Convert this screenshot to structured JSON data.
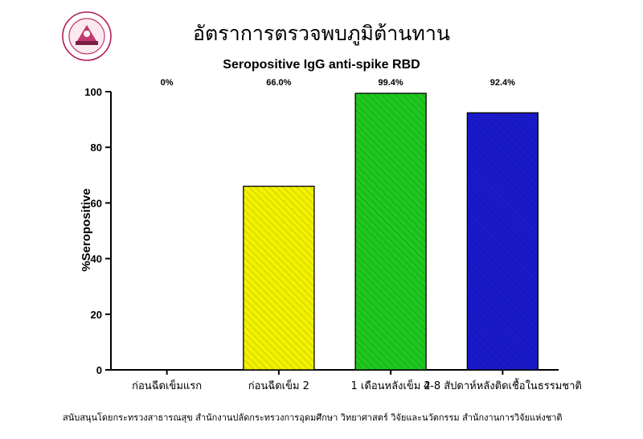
{
  "chart_data": {
    "type": "bar",
    "title": "อัตราการตรวจพบภูมิต้านทาน",
    "subtitle": "Seropositive IgG anti-spike RBD",
    "ylabel": "%Seropositive",
    "ylim": [
      0,
      100
    ],
    "yticks": [
      0,
      20,
      40,
      60,
      80,
      100
    ],
    "categories": [
      "ก่อนฉีดเข็มแรก",
      "ก่อนฉีดเข็ม 2",
      "1 เดือนหลังเข็ม 2",
      "4-8 สัปดาห์หลังติดเชื้อในธรรมชาติ"
    ],
    "values": [
      0,
      66.0,
      99.4,
      92.4
    ],
    "data_labels": [
      "0%",
      "66.0%",
      "99.4%",
      "92.4%"
    ],
    "colors": [
      "#ffffff",
      "#f2f200",
      "#1ec81e",
      "#1a1acc"
    ],
    "grid": false
  },
  "footer": {
    "text": "สนับสนุนโดยกระทรวงสาธารณสุข สำนักงานปลัดกระทรวงการอุดมศึกษา วิทยาศาสตร์ วิจัยและนวัตกรรม สำนักงานการวิจัยแห่งชาติ"
  },
  "logo": {
    "icon": "center-of-excellence-seal-icon"
  }
}
